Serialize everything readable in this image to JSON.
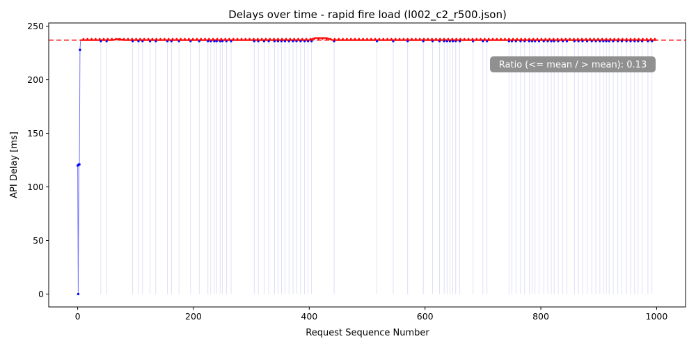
{
  "chart_data": {
    "type": "line",
    "title": "Delays over time - rapid fire load (l002_c2_r500.json)",
    "xlabel": "Request Sequence Number",
    "ylabel": "API Delay [ms]",
    "xlim": [
      -50,
      1050
    ],
    "ylim": [
      -12,
      253
    ],
    "xticks": [
      0,
      200,
      400,
      600,
      800,
      1000
    ],
    "yticks": [
      0,
      50,
      100,
      150,
      200,
      250
    ],
    "mean_line": 237,
    "annotation": "Ratio (<= mean / > mean): 0.13",
    "legend": "none",
    "grid": false,
    "colors": {
      "series": "#0000ff",
      "above_mean": "#ff0000",
      "mean_line": "#ff0000",
      "spikes": "#d8d8f4",
      "annotation_box": "#909090"
    },
    "series": [
      {
        "x": [
          0,
          1,
          2,
          3,
          4,
          5,
          10,
          20,
          30,
          40,
          50,
          60,
          70,
          80,
          90,
          100,
          150,
          200,
          250,
          300,
          350,
          400,
          410,
          420,
          430,
          440,
          450,
          500,
          550,
          600,
          650,
          700,
          750,
          800,
          850,
          900,
          950,
          1000
        ],
        "values": [
          120,
          0,
          121,
          121,
          228,
          237,
          237,
          237,
          237,
          237,
          237,
          237,
          238,
          237,
          237,
          237,
          237,
          237,
          237,
          237,
          237,
          237,
          239,
          239,
          239,
          237,
          237,
          237,
          237,
          237,
          237,
          237,
          237,
          237,
          237,
          237,
          237,
          237
        ]
      }
    ],
    "below_mean_points": [
      40,
      50,
      95,
      105,
      112,
      125,
      135,
      155,
      162,
      175,
      195,
      210,
      225,
      230,
      236,
      240,
      246,
      250,
      257,
      265,
      305,
      312,
      322,
      330,
      340,
      346,
      352,
      358,
      365,
      372,
      378,
      385,
      392,
      398,
      404,
      443,
      517,
      545,
      570,
      597,
      613,
      625,
      633,
      638,
      643,
      648,
      653,
      660,
      683,
      700,
      707,
      745,
      750,
      757,
      765,
      772,
      780,
      785,
      790,
      797,
      805,
      812,
      818,
      823,
      830,
      838,
      845,
      858,
      865,
      872,
      880,
      888,
      895,
      902,
      908,
      913,
      918,
      925,
      933,
      940,
      948,
      955,
      962,
      968,
      975,
      985,
      992
    ]
  }
}
